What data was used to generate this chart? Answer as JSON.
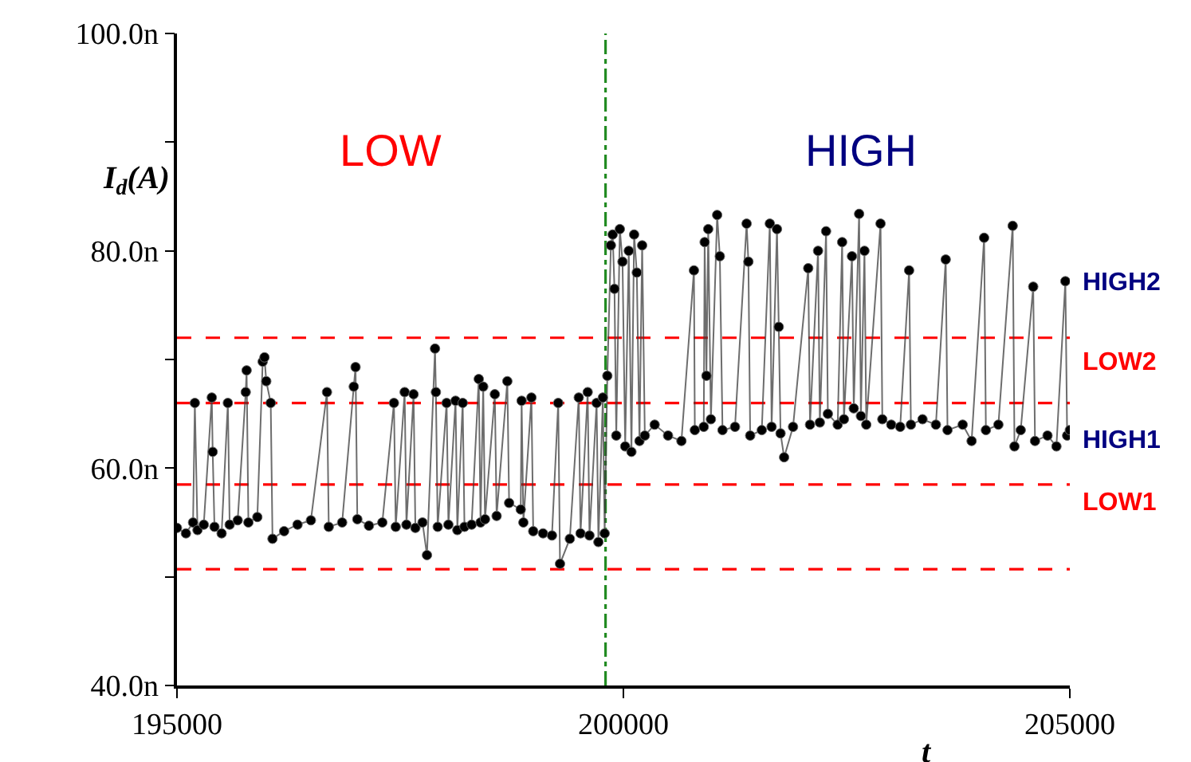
{
  "chart_data": {
    "type": "line",
    "ylabel": "I$_{d}$(A)",
    "xlabel": "t",
    "marker": "circle",
    "line_style": "solid",
    "grid": false,
    "xlim": [
      195000,
      205000
    ],
    "xticks": [
      195000,
      200000,
      205000
    ],
    "ylim": [
      40,
      100
    ],
    "yticks": [
      {
        "value": 40,
        "label": "40.0n"
      },
      {
        "value": 50,
        "label": null
      },
      {
        "value": 60,
        "label": "60.0n"
      },
      {
        "value": 70,
        "label": null
      },
      {
        "value": 80,
        "label": "80.0n"
      },
      {
        "value": 90,
        "label": null
      },
      {
        "value": 100,
        "label": "100.0n"
      }
    ],
    "x": [
      195000,
      195100,
      195180,
      195200,
      195230,
      195300,
      195390,
      195400,
      195420,
      195500,
      195570,
      195590,
      195680,
      195770,
      195780,
      195800,
      195900,
      195960,
      195980,
      196000,
      196050,
      196070,
      196200,
      196350,
      196500,
      196680,
      196700,
      196850,
      196980,
      197000,
      197020,
      197150,
      197300,
      197430,
      197450,
      197550,
      197570,
      197650,
      197670,
      197750,
      197800,
      197890,
      197900,
      197920,
      198020,
      198040,
      198120,
      198140,
      198200,
      198220,
      198300,
      198380,
      198400,
      198430,
      198450,
      198560,
      198580,
      198700,
      198720,
      198850,
      198860,
      198880,
      198970,
      198990,
      199100,
      199200,
      199270,
      199290,
      199400,
      199500,
      199520,
      199600,
      199620,
      199700,
      199720,
      199770,
      199790,
      199820,
      199860,
      199880,
      199900,
      199920,
      199960,
      199990,
      200020,
      200060,
      200090,
      200120,
      200150,
      200180,
      200210,
      200240,
      200350,
      200500,
      200650,
      200790,
      200800,
      200900,
      200910,
      200930,
      200950,
      200980,
      201050,
      201080,
      201110,
      201250,
      201380,
      201400,
      201420,
      201550,
      201640,
      201660,
      201720,
      201740,
      201760,
      201800,
      201900,
      202070,
      202090,
      202180,
      202200,
      202270,
      202290,
      202400,
      202450,
      202470,
      202560,
      202580,
      202640,
      202660,
      202700,
      202720,
      202880,
      202900,
      203000,
      203100,
      203200,
      203220,
      203350,
      203500,
      203610,
      203630,
      203800,
      203900,
      204040,
      204060,
      204200,
      204360,
      204380,
      204450,
      204590,
      204610,
      204750,
      204850,
      204950,
      204970,
      205000
    ],
    "series": [
      {
        "color": "#000000",
        "values": [
          54.5,
          54.0,
          55.0,
          66.0,
          54.3,
          54.8,
          66.5,
          61.5,
          54.6,
          54.0,
          66.0,
          54.8,
          55.2,
          67.0,
          69.0,
          55.0,
          55.5,
          69.8,
          70.2,
          68.0,
          66.0,
          53.5,
          54.2,
          54.8,
          55.2,
          67.0,
          54.6,
          55.0,
          67.5,
          69.3,
          55.3,
          54.7,
          55.0,
          66.0,
          54.6,
          67.0,
          54.8,
          66.8,
          54.5,
          55.0,
          52.0,
          71.0,
          67.0,
          54.6,
          66.0,
          54.8,
          66.2,
          54.3,
          66.0,
          54.6,
          54.8,
          68.2,
          55.0,
          67.5,
          55.3,
          66.8,
          55.6,
          68.0,
          56.8,
          56.2,
          66.2,
          55.0,
          66.5,
          54.2,
          54.0,
          53.8,
          66.0,
          51.2,
          53.5,
          66.5,
          54.0,
          67.0,
          53.8,
          66.0,
          53.2,
          66.5,
          54.0,
          68.5,
          80.5,
          81.5,
          76.5,
          63.0,
          82.0,
          79.0,
          62.0,
          80.0,
          61.5,
          81.5,
          78.0,
          62.5,
          80.5,
          63.0,
          64.0,
          63.0,
          62.5,
          78.2,
          63.5,
          63.8,
          80.8,
          68.5,
          82.0,
          64.5,
          83.3,
          79.5,
          63.5,
          63.8,
          82.5,
          79.0,
          63.0,
          63.5,
          82.5,
          63.8,
          82.0,
          73.0,
          63.2,
          61.0,
          63.8,
          78.4,
          64.0,
          80.0,
          64.2,
          81.8,
          65.0,
          64.0,
          80.8,
          64.5,
          79.5,
          65.5,
          83.4,
          64.8,
          80.0,
          64.0,
          82.5,
          64.5,
          64.0,
          63.8,
          78.2,
          64.0,
          64.5,
          64.0,
          79.2,
          63.5,
          64.0,
          62.5,
          81.2,
          63.5,
          64.0,
          82.3,
          62.0,
          63.5,
          76.7,
          62.5,
          63.0,
          62.0,
          77.2,
          63.0,
          63.5
        ]
      }
    ],
    "ref_lines": [
      {
        "axis": "y",
        "value": 72,
        "color": "#ff0000",
        "line_style": "dashed"
      },
      {
        "axis": "y",
        "value": 66,
        "color": "#ff0000",
        "line_style": "dashed"
      },
      {
        "axis": "y",
        "value": 58.5,
        "color": "#ff0000",
        "line_style": "dashed"
      },
      {
        "axis": "y",
        "value": 50.7,
        "color": "#ff0000",
        "line_style": "dashed"
      },
      {
        "axis": "x",
        "value": 199800,
        "color": "#228b22",
        "line_style": "dashdot"
      }
    ],
    "annotations": [
      "LOW",
      "HIGH",
      "HIGH2",
      "LOW2",
      "HIGH1",
      "LOW1"
    ]
  }
}
